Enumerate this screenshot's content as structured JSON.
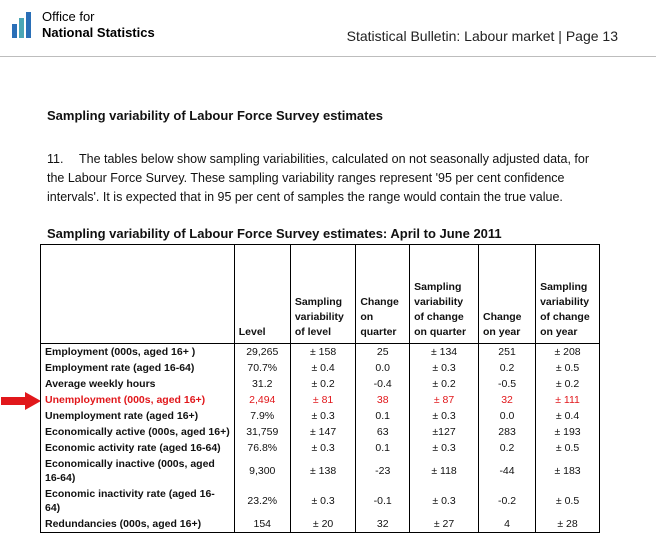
{
  "header": {
    "org_line1": "Office for",
    "org_line2": "National Statistics",
    "bulletin": "Statistical Bulletin: Labour market |   Page 13"
  },
  "section_title": "Sampling variability of Labour Force Survey estimates",
  "paragraph": {
    "number": "11.",
    "text": "The tables below show sampling variabilities, calculated on not seasonally adjusted data, for the Labour Force Survey. These sampling variability ranges represent '95 per cent confidence intervals'. It is expected that in 95 per cent of samples the range would contain the true value."
  },
  "table": {
    "title": "Sampling variability of Labour Force Survey estimates: April to June 2011",
    "columns": [
      "",
      "Level",
      "Sampling variability of level",
      "Change on quarter",
      "Sampling variability of change on quarter",
      "Change on year",
      "Sampling variability of change on year"
    ],
    "rows": [
      {
        "label": "Employment (000s, aged 16+ )",
        "cells": [
          "29,265",
          "± 158",
          "25",
          "± 134",
          "251",
          "± 208"
        ]
      },
      {
        "label": "Employment rate (aged 16-64)",
        "cells": [
          "70.7%",
          "± 0.4",
          "0.0",
          "± 0.3",
          "0.2",
          "± 0.5"
        ]
      },
      {
        "label": "Average weekly hours",
        "cells": [
          "31.2",
          "± 0.2",
          "-0.4",
          "± 0.2",
          "-0.5",
          "± 0.2"
        ]
      },
      {
        "label": "Unemployment (000s, aged 16+)",
        "cells": [
          "2,494",
          "± 81",
          "38",
          "± 87",
          "32",
          "± 111"
        ],
        "highlight": true
      },
      {
        "label": "Unemployment rate (aged 16+)",
        "cells": [
          "7.9%",
          "± 0.3",
          "0.1",
          "± 0.3",
          "0.0",
          "± 0.4"
        ]
      },
      {
        "label": "Economically active (000s, aged 16+)",
        "cells": [
          "31,759",
          "± 147",
          "63",
          "±127",
          "283",
          "± 193"
        ]
      },
      {
        "label": "Economic activity rate (aged 16-64)",
        "cells": [
          "76.8%",
          "± 0.3",
          "0.1",
          "± 0.3",
          "0.2",
          "± 0.5"
        ]
      },
      {
        "label": "Economically inactive (000s, aged 16-64)",
        "cells": [
          "9,300",
          "± 138",
          "-23",
          "± 118",
          "-44",
          "± 183"
        ]
      },
      {
        "label": "Economic inactivity rate (aged 16-64)",
        "cells": [
          "23.2%",
          "± 0.3",
          "-0.1",
          "± 0.3",
          "-0.2",
          "± 0.5"
        ]
      },
      {
        "label": "Redundancies (000s, aged 16+)",
        "cells": [
          "154",
          "± 20",
          "32",
          "± 27",
          "4",
          "± 28"
        ]
      }
    ]
  },
  "colors": {
    "highlight": "#e1171b",
    "arrow": "#e1171b",
    "logo_blue": "#2a6fb7",
    "logo_teal": "#4aa6b5"
  },
  "icons": {
    "logo": "ons-logo-icon",
    "pointer": "right-arrow-icon"
  }
}
